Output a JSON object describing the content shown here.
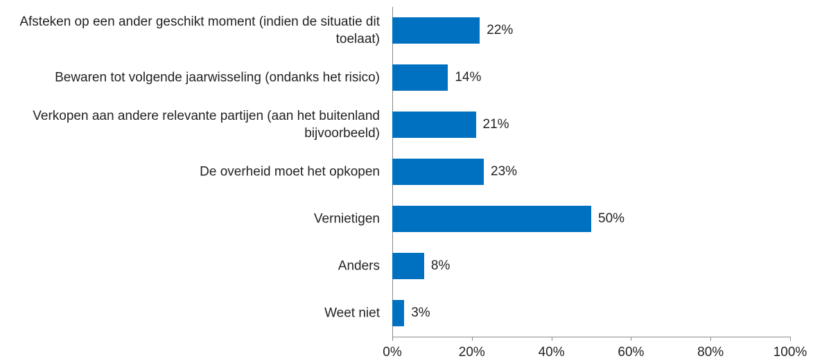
{
  "chart_data": {
    "type": "bar",
    "orientation": "horizontal",
    "categories": [
      "Afsteken op een ander geschikt moment (indien de situatie dit toelaat)",
      "Bewaren tot volgende jaarwisseling (ondanks het risico)",
      "Verkopen aan andere relevante partijen (aan het buitenland bijvoorbeeld)",
      "De overheid moet het opkopen",
      "Vernietigen",
      "Anders",
      "Weet niet"
    ],
    "values": [
      22,
      14,
      21,
      23,
      50,
      8,
      3
    ],
    "value_labels": [
      "22%",
      "14%",
      "21%",
      "23%",
      "50%",
      "8%",
      "3%"
    ],
    "color": "#0070c0",
    "xlim": [
      0,
      100
    ],
    "xticks": [
      {
        "value": 0,
        "label": "0%"
      },
      {
        "value": 20,
        "label": "20%"
      },
      {
        "value": 40,
        "label": "40%"
      },
      {
        "value": 60,
        "label": "60%"
      },
      {
        "value": 80,
        "label": "80%"
      },
      {
        "value": 100,
        "label": "100%"
      }
    ],
    "grid": false
  }
}
